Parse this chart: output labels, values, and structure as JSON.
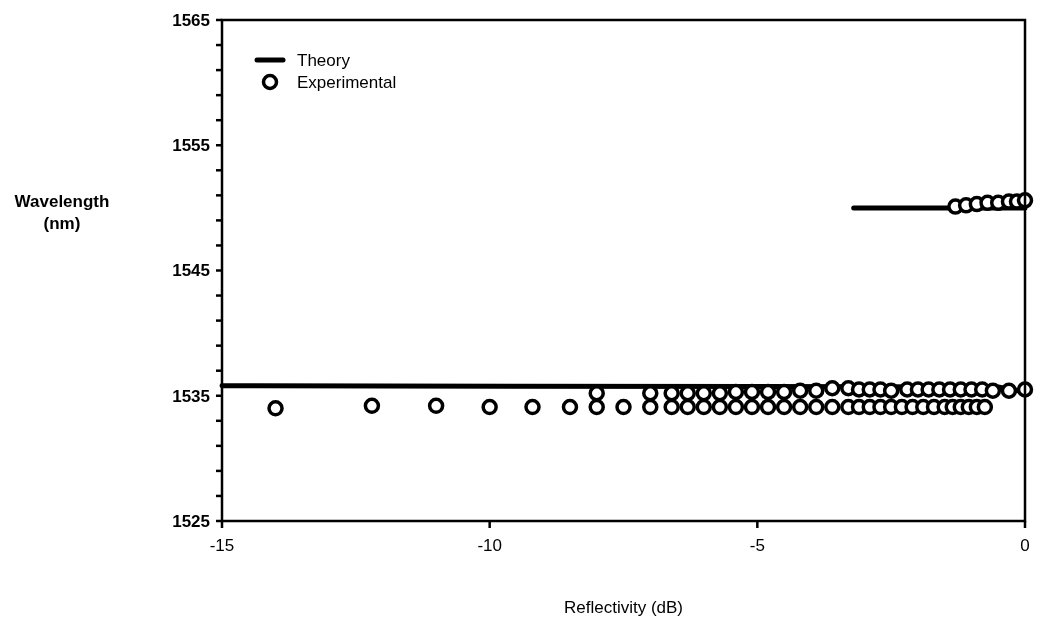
{
  "chart_data": {
    "type": "scatter",
    "xlabel": "Reflectivity (dB)",
    "ylabel": "Wavelength\n(nm)",
    "xlim": [
      -15,
      0
    ],
    "xticks": [
      -15,
      -10,
      -5,
      0
    ],
    "ylim": [
      1525,
      1565
    ],
    "yticks": [
      1525,
      {
        "value": 1527,
        "label": null
      },
      {
        "value": 1529,
        "label": null
      },
      {
        "value": 1531,
        "label": null
      },
      {
        "value": 1533,
        "label": null
      },
      1535,
      {
        "value": 1537,
        "label": null
      },
      {
        "value": 1539,
        "label": null
      },
      {
        "value": 1541,
        "label": null
      },
      {
        "value": 1543,
        "label": null
      },
      1545,
      {
        "value": 1547,
        "label": null
      },
      {
        "value": 1549,
        "label": null
      },
      {
        "value": 1551,
        "label": null
      },
      {
        "value": 1553,
        "label": null
      },
      1555,
      {
        "value": 1557,
        "label": null
      },
      {
        "value": 1559,
        "label": null
      },
      {
        "value": 1561,
        "label": null
      },
      {
        "value": 1563,
        "label": null
      },
      1565
    ],
    "grid": false,
    "legend": "top left",
    "series": [
      {
        "name": "Theory",
        "type": "line",
        "color": "#000000",
        "line_style": "solid",
        "x": [
          -15,
          -0.5,
          0,
          -1.6,
          -3.2,
          0
        ],
        "values": [
          1535.8,
          1535.7,
          1535.3,
          null,
          1550,
          1550
        ]
      },
      {
        "name": "Experimental",
        "color": "#000000",
        "marker": "circle",
        "x": [
          -14,
          -12.2,
          -11,
          -10,
          -9.2,
          -8.5,
          -8,
          -7.5,
          -7,
          -6.6,
          -6.3,
          -6,
          -5.7,
          -5.4,
          -5.1,
          -4.8,
          -4.5,
          -4.2,
          -3.9,
          -3.6,
          -3.3,
          -3.1,
          -2.9,
          -2.7,
          -2.5,
          -2.3,
          -2.1,
          -1.9,
          -1.7,
          -1.5,
          -1.35,
          -1.2,
          -1.05,
          -0.9,
          -0.75,
          -8,
          -7,
          -6.6,
          -6.3,
          -6,
          -5.7,
          -5.4,
          -5.1,
          -4.8,
          -4.5,
          -4.2,
          -3.9,
          -3.6,
          -3.3,
          -3.1,
          -2.9,
          -2.7,
          -2.5,
          -2.2,
          -2,
          -1.8,
          -1.6,
          -1.4,
          -1.2,
          -1,
          -0.8,
          -0.6,
          -0.3,
          0,
          -1.3,
          -1.1,
          -0.9,
          -0.7,
          -0.5,
          -0.3,
          -0.15,
          0
        ],
        "values": [
          1534,
          1534.2,
          1534.2,
          1534.1,
          1534.1,
          1534.1,
          1534.1,
          1534.1,
          1534.1,
          1534.1,
          1534.1,
          1534.1,
          1534.1,
          1534.1,
          1534.1,
          1534.1,
          1534.1,
          1534.1,
          1534.1,
          1534.1,
          1534.1,
          1534.1,
          1534.1,
          1534.1,
          1534.1,
          1534.1,
          1534.1,
          1534.1,
          1534.1,
          1534.1,
          1534.1,
          1534.1,
          1534.1,
          1534.1,
          1534.1,
          1535.2,
          1535.2,
          1535.2,
          1535.2,
          1535.2,
          1535.2,
          1535.3,
          1535.3,
          1535.3,
          1535.3,
          1535.4,
          1535.4,
          1535.6,
          1535.6,
          1535.5,
          1535.5,
          1535.5,
          1535.4,
          1535.5,
          1535.5,
          1535.5,
          1535.5,
          1535.5,
          1535.5,
          1535.5,
          1535.5,
          1535.4,
          1535.4,
          1535.5,
          1550.1,
          1550.2,
          1550.3,
          1550.4,
          1550.4,
          1550.5,
          1550.5,
          1550.6
        ]
      }
    ]
  }
}
